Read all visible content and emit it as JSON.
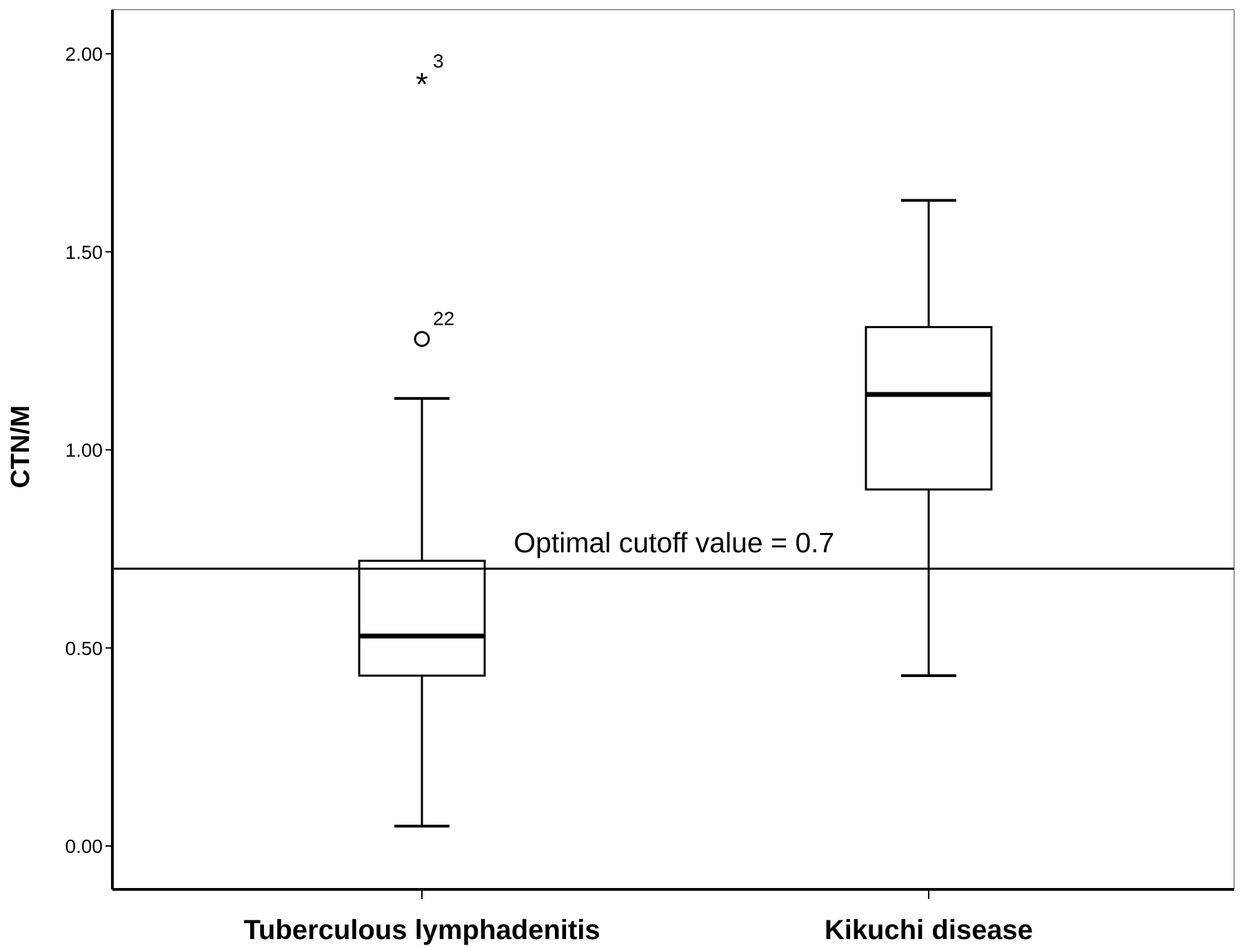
{
  "chart_data": {
    "type": "box",
    "ylabel": "CTN/M",
    "ylim": [
      -0.11,
      2.23
    ],
    "yticks": [
      {
        "value": 0.0,
        "label": "0.00"
      },
      {
        "value": 0.5,
        "label": "0.50"
      },
      {
        "value": 1.0,
        "label": "1.00"
      },
      {
        "value": 1.5,
        "label": "1.50"
      },
      {
        "value": 2.0,
        "label": "2.00"
      }
    ],
    "categories": [
      "Tuberculous lymphadenitis",
      "Kikuchi disease"
    ],
    "boxes": [
      {
        "category": "Tuberculous lymphadenitis",
        "whisker_low": 0.05,
        "q1": 0.43,
        "median": 0.53,
        "q3": 0.72,
        "whisker_high": 1.13,
        "outliers": [
          {
            "value": 1.28,
            "marker": "circle",
            "label": "22"
          },
          {
            "value": 1.93,
            "marker": "star",
            "label": "3"
          }
        ]
      },
      {
        "category": "Kikuchi disease",
        "whisker_low": 0.43,
        "q1": 0.9,
        "median": 1.14,
        "q3": 1.31,
        "whisker_high": 1.63,
        "outliers": []
      }
    ],
    "reference_line": {
      "value": 0.7,
      "label": "Optimal cutoff value = 0.7"
    },
    "grid": false,
    "legend": "none"
  }
}
